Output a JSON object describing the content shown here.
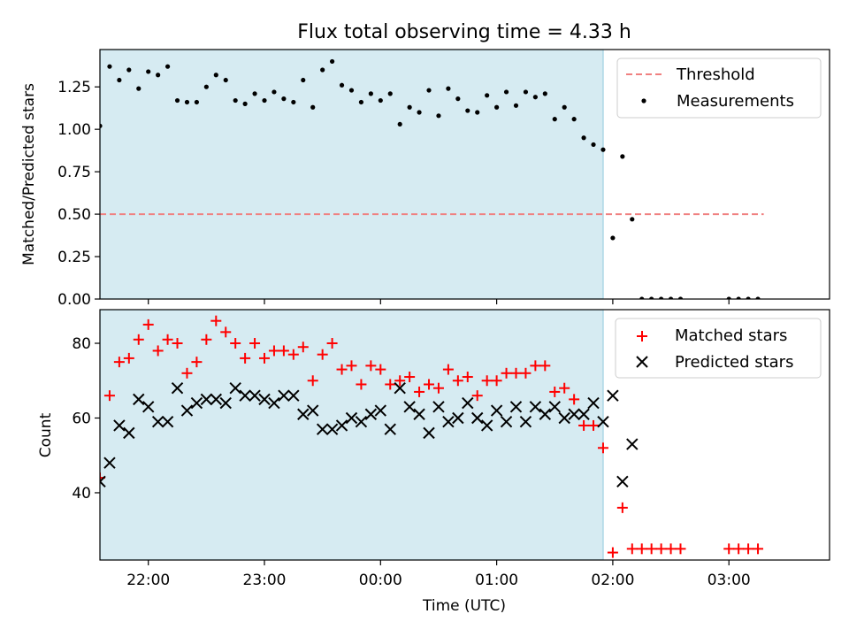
{
  "chart_data": [
    {
      "type": "scatter",
      "title": "Flux total observing time = 4.33 h",
      "xlabel": "",
      "ylabel": "Matched/Predicted stars",
      "xlim": [
        "21:35",
        "03:52"
      ],
      "ylim": [
        0,
        1.47
      ],
      "x_ticks": [
        "22:00",
        "23:00",
        "00:00",
        "01:00",
        "02:00",
        "03:00"
      ],
      "y_ticks": [
        "0.00",
        "0.25",
        "0.50",
        "0.75",
        "1.00",
        "1.25"
      ],
      "shaded_interval": [
        "21:35",
        "01:55"
      ],
      "legend": {
        "position": "top-right",
        "entries": [
          "Threshold",
          "Measurements"
        ]
      },
      "threshold": {
        "name": "Threshold",
        "value": 0.5,
        "x_range": [
          "21:35",
          "03:18"
        ],
        "color": "#f08080"
      },
      "series": [
        {
          "name": "Measurements",
          "color": "#000000",
          "marker": "dot",
          "points": [
            [
              "21:35",
              1.02
            ],
            [
              "21:40",
              1.37
            ],
            [
              "21:45",
              1.29
            ],
            [
              "21:50",
              1.35
            ],
            [
              "21:55",
              1.24
            ],
            [
              "22:00",
              1.34
            ],
            [
              "22:05",
              1.32
            ],
            [
              "22:10",
              1.37
            ],
            [
              "22:15",
              1.17
            ],
            [
              "22:20",
              1.16
            ],
            [
              "22:25",
              1.16
            ],
            [
              "22:30",
              1.25
            ],
            [
              "22:35",
              1.32
            ],
            [
              "22:40",
              1.29
            ],
            [
              "22:45",
              1.17
            ],
            [
              "22:50",
              1.15
            ],
            [
              "22:55",
              1.21
            ],
            [
              "23:00",
              1.17
            ],
            [
              "23:05",
              1.22
            ],
            [
              "23:10",
              1.18
            ],
            [
              "23:15",
              1.16
            ],
            [
              "23:20",
              1.29
            ],
            [
              "23:25",
              1.13
            ],
            [
              "23:30",
              1.35
            ],
            [
              "23:35",
              1.4
            ],
            [
              "23:40",
              1.26
            ],
            [
              "23:45",
              1.23
            ],
            [
              "23:50",
              1.16
            ],
            [
              "23:55",
              1.21
            ],
            [
              "00:00",
              1.17
            ],
            [
              "00:05",
              1.21
            ],
            [
              "00:10",
              1.03
            ],
            [
              "00:15",
              1.13
            ],
            [
              "00:20",
              1.1
            ],
            [
              "00:25",
              1.23
            ],
            [
              "00:30",
              1.08
            ],
            [
              "00:35",
              1.24
            ],
            [
              "00:40",
              1.18
            ],
            [
              "00:45",
              1.11
            ],
            [
              "00:50",
              1.1
            ],
            [
              "00:55",
              1.2
            ],
            [
              "01:00",
              1.13
            ],
            [
              "01:05",
              1.22
            ],
            [
              "01:10",
              1.14
            ],
            [
              "01:15",
              1.22
            ],
            [
              "01:20",
              1.19
            ],
            [
              "01:25",
              1.21
            ],
            [
              "01:30",
              1.06
            ],
            [
              "01:35",
              1.13
            ],
            [
              "01:40",
              1.06
            ],
            [
              "01:45",
              0.95
            ],
            [
              "01:50",
              0.91
            ],
            [
              "01:55",
              0.88
            ],
            [
              "02:00",
              0.36
            ],
            [
              "02:05",
              0.84
            ],
            [
              "02:10",
              0.47
            ],
            [
              "02:15",
              0.0
            ],
            [
              "02:20",
              0.0
            ],
            [
              "02:25",
              0.0
            ],
            [
              "02:30",
              0.0
            ],
            [
              "02:35",
              0.0
            ],
            [
              "03:00",
              0.0
            ],
            [
              "03:05",
              0.0
            ],
            [
              "03:10",
              0.0
            ],
            [
              "03:15",
              0.0
            ]
          ]
        }
      ]
    },
    {
      "type": "scatter",
      "title": "",
      "xlabel": "Time (UTC)",
      "ylabel": "Count",
      "xlim": [
        "21:35",
        "03:52"
      ],
      "ylim": [
        22,
        89
      ],
      "x_ticks": [
        "22:00",
        "23:00",
        "00:00",
        "01:00",
        "02:00",
        "03:00"
      ],
      "y_ticks": [
        "40",
        "60",
        "80"
      ],
      "shaded_interval": [
        "21:35",
        "01:55"
      ],
      "legend": {
        "position": "top-right",
        "entries": [
          "Matched stars",
          "Predicted stars"
        ]
      },
      "series": [
        {
          "name": "Matched stars",
          "color": "#ff0000",
          "marker": "plus",
          "points": [
            [
              "21:35",
              44
            ],
            [
              "21:40",
              66
            ],
            [
              "21:45",
              75
            ],
            [
              "21:50",
              76
            ],
            [
              "21:55",
              81
            ],
            [
              "22:00",
              85
            ],
            [
              "22:05",
              78
            ],
            [
              "22:10",
              81
            ],
            [
              "22:15",
              80
            ],
            [
              "22:20",
              72
            ],
            [
              "22:25",
              75
            ],
            [
              "22:30",
              81
            ],
            [
              "22:35",
              86
            ],
            [
              "22:40",
              83
            ],
            [
              "22:45",
              80
            ],
            [
              "22:50",
              76
            ],
            [
              "22:55",
              80
            ],
            [
              "23:00",
              76
            ],
            [
              "23:05",
              78
            ],
            [
              "23:10",
              78
            ],
            [
              "23:15",
              77
            ],
            [
              "23:20",
              79
            ],
            [
              "23:25",
              70
            ],
            [
              "23:30",
              77
            ],
            [
              "23:35",
              80
            ],
            [
              "23:40",
              73
            ],
            [
              "23:45",
              74
            ],
            [
              "23:50",
              69
            ],
            [
              "23:55",
              74
            ],
            [
              "00:00",
              73
            ],
            [
              "00:05",
              69
            ],
            [
              "00:10",
              70
            ],
            [
              "00:15",
              71
            ],
            [
              "00:20",
              67
            ],
            [
              "00:25",
              69
            ],
            [
              "00:30",
              68
            ],
            [
              "00:35",
              73
            ],
            [
              "00:40",
              70
            ],
            [
              "00:45",
              71
            ],
            [
              "00:50",
              66
            ],
            [
              "00:55",
              70
            ],
            [
              "01:00",
              70
            ],
            [
              "01:05",
              72
            ],
            [
              "01:10",
              72
            ],
            [
              "01:15",
              72
            ],
            [
              "01:20",
              74
            ],
            [
              "01:25",
              74
            ],
            [
              "01:30",
              67
            ],
            [
              "01:35",
              68
            ],
            [
              "01:40",
              65
            ],
            [
              "01:45",
              58
            ],
            [
              "01:50",
              58
            ],
            [
              "01:55",
              52
            ],
            [
              "02:00",
              24
            ],
            [
              "02:05",
              36
            ],
            [
              "02:10",
              25
            ],
            [
              "02:15",
              25
            ],
            [
              "02:20",
              25
            ],
            [
              "02:25",
              25
            ],
            [
              "02:30",
              25
            ],
            [
              "02:35",
              25
            ],
            [
              "03:00",
              25
            ],
            [
              "03:05",
              25
            ],
            [
              "03:10",
              25
            ],
            [
              "03:15",
              25
            ]
          ]
        },
        {
          "name": "Predicted stars",
          "color": "#000000",
          "marker": "x",
          "points": [
            [
              "21:35",
              43
            ],
            [
              "21:40",
              48
            ],
            [
              "21:45",
              58
            ],
            [
              "21:50",
              56
            ],
            [
              "21:55",
              65
            ],
            [
              "22:00",
              63
            ],
            [
              "22:05",
              59
            ],
            [
              "22:10",
              59
            ],
            [
              "22:15",
              68
            ],
            [
              "22:20",
              62
            ],
            [
              "22:25",
              64
            ],
            [
              "22:30",
              65
            ],
            [
              "22:35",
              65
            ],
            [
              "22:40",
              64
            ],
            [
              "22:45",
              68
            ],
            [
              "22:50",
              66
            ],
            [
              "22:55",
              66
            ],
            [
              "23:00",
              65
            ],
            [
              "23:05",
              64
            ],
            [
              "23:10",
              66
            ],
            [
              "23:15",
              66
            ],
            [
              "23:20",
              61
            ],
            [
              "23:25",
              62
            ],
            [
              "23:30",
              57
            ],
            [
              "23:35",
              57
            ],
            [
              "23:40",
              58
            ],
            [
              "23:45",
              60
            ],
            [
              "23:50",
              59
            ],
            [
              "23:55",
              61
            ],
            [
              "00:00",
              62
            ],
            [
              "00:05",
              57
            ],
            [
              "00:10",
              68
            ],
            [
              "00:15",
              63
            ],
            [
              "00:20",
              61
            ],
            [
              "00:25",
              56
            ],
            [
              "00:30",
              63
            ],
            [
              "00:35",
              59
            ],
            [
              "00:40",
              60
            ],
            [
              "00:45",
              64
            ],
            [
              "00:50",
              60
            ],
            [
              "00:55",
              58
            ],
            [
              "01:00",
              62
            ],
            [
              "01:05",
              59
            ],
            [
              "01:10",
              63
            ],
            [
              "01:15",
              59
            ],
            [
              "01:20",
              63
            ],
            [
              "01:25",
              61
            ],
            [
              "01:30",
              63
            ],
            [
              "01:35",
              60
            ],
            [
              "01:40",
              61
            ],
            [
              "01:45",
              61
            ],
            [
              "01:50",
              64
            ],
            [
              "01:55",
              59
            ],
            [
              "02:00",
              66
            ],
            [
              "02:05",
              43
            ],
            [
              "02:10",
              53
            ]
          ]
        }
      ]
    }
  ],
  "colors": {
    "shade": "#add8e6",
    "axes": "#000000"
  }
}
